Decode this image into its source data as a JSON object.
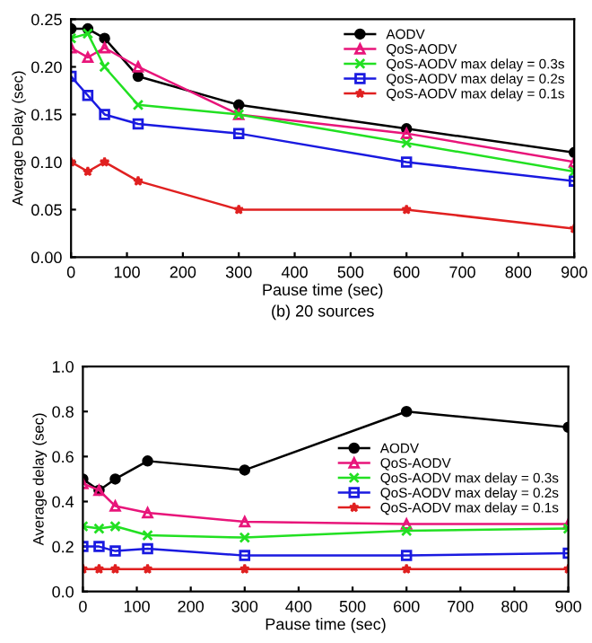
{
  "chart_data": [
    {
      "type": "line",
      "xlabel": "Pause time (sec)",
      "ylabel": "Average Delay (sec)",
      "annotations": [
        "(b) 20 sources"
      ],
      "x": [
        0,
        30,
        60,
        120,
        300,
        600,
        900
      ],
      "xlim": [
        0,
        900
      ],
      "xticks": [
        0,
        100,
        200,
        300,
        400,
        500,
        600,
        700,
        800,
        900
      ],
      "ylim": [
        0,
        0.25
      ],
      "yticks": [
        {
          "value": 0,
          "label": "0.00"
        },
        {
          "value": 0.05,
          "label": "0.05"
        },
        {
          "value": 0.1,
          "label": "0.10"
        },
        {
          "value": 0.15,
          "label": "0.15"
        },
        {
          "value": 0.2,
          "label": "0.20"
        },
        {
          "value": 0.25,
          "label": "0.25"
        }
      ],
      "grid": false,
      "legend": "top right",
      "line_style": "solid",
      "series": [
        {
          "name": "AODV",
          "color": "#000000",
          "marker": "circle",
          "values": [
            0.24,
            0.24,
            0.23,
            0.19,
            0.16,
            0.135,
            0.11
          ]
        },
        {
          "name": "QoS-AODV",
          "color": "#e8157a",
          "marker": "triangle",
          "values": [
            0.22,
            0.21,
            0.22,
            0.2,
            0.15,
            0.13,
            0.1
          ]
        },
        {
          "name": "QoS-AODV max delay = 0.3s",
          "color": "#22e022",
          "marker": "cross",
          "values": [
            0.23,
            0.235,
            0.2,
            0.16,
            0.15,
            0.12,
            0.09
          ]
        },
        {
          "name": "QoS-AODV max delay = 0.2s",
          "color": "#1a1ae0",
          "marker": "square",
          "values": [
            0.19,
            0.17,
            0.15,
            0.14,
            0.13,
            0.1,
            0.08
          ]
        },
        {
          "name": "QoS-AODV max delay = 0.1s",
          "color": "#e02020",
          "marker": "star",
          "values": [
            0.1,
            0.09,
            0.1,
            0.08,
            0.05,
            0.05,
            0.03
          ]
        }
      ]
    },
    {
      "type": "line",
      "xlabel": "Pause time (sec)",
      "ylabel": "Average delay (sec)",
      "x": [
        0,
        30,
        60,
        120,
        300,
        600,
        900
      ],
      "xlim": [
        0,
        900
      ],
      "xticks": [
        0,
        100,
        200,
        300,
        400,
        500,
        600,
        700,
        800,
        900
      ],
      "ylim": [
        0,
        1.0
      ],
      "yticks": [
        {
          "value": 0,
          "label": "0.0"
        },
        0.2,
        0.4,
        0.6,
        0.8,
        {
          "value": 1,
          "label": "1.0"
        }
      ],
      "grid": false,
      "legend": "center right",
      "line_style": "solid",
      "series": [
        {
          "name": "AODV",
          "color": "#000000",
          "marker": "circle",
          "values": [
            0.5,
            0.45,
            0.5,
            0.58,
            0.54,
            0.8,
            0.73
          ]
        },
        {
          "name": "QoS-AODV",
          "color": "#e8157a",
          "marker": "triangle",
          "values": [
            0.48,
            0.45,
            0.38,
            0.35,
            0.31,
            0.3,
            0.3
          ]
        },
        {
          "name": "QoS-AODV max delay = 0.3s",
          "color": "#22e022",
          "marker": "cross",
          "values": [
            0.29,
            0.28,
            0.29,
            0.25,
            0.24,
            0.27,
            0.28
          ]
        },
        {
          "name": "QoS-AODV max delay = 0.2s",
          "color": "#1a1ae0",
          "marker": "square",
          "values": [
            0.2,
            0.2,
            0.18,
            0.19,
            0.16,
            0.16,
            0.17
          ]
        },
        {
          "name": "QoS-AODV max delay = 0.1s",
          "color": "#e02020",
          "marker": "star",
          "values": [
            0.1,
            0.1,
            0.1,
            0.1,
            0.1,
            0.1,
            0.1
          ]
        }
      ]
    }
  ]
}
